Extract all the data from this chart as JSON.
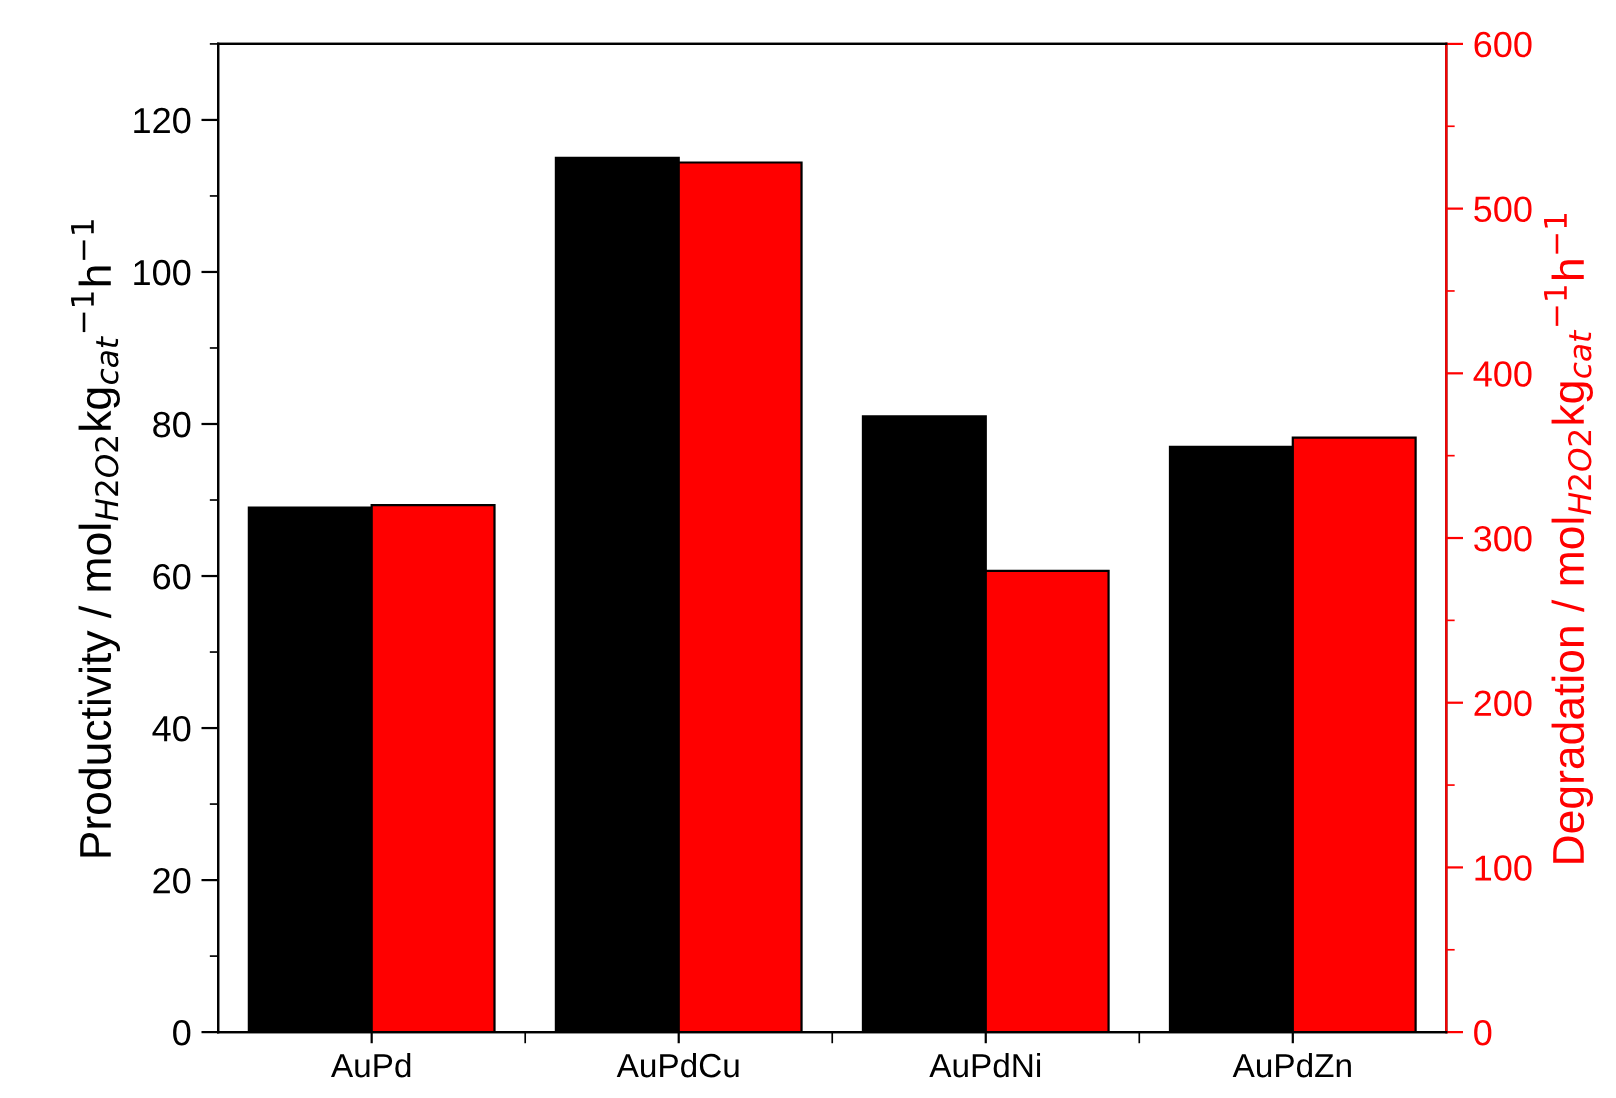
{
  "chart_data": {
    "type": "bar",
    "categories": [
      "AuPd",
      "AuPdCu",
      "AuPdNi",
      "AuPdZn"
    ],
    "ylabel": "Productivity / mol$_{H2O2}$kg$_{cat}$$^{−1}$h$^{−1}$",
    "y2label": "Degradation / mol$_{H2O2}$kg$_{cat}$$^{−1}$h$^{−1}$",
    "series": [
      {
        "color": "#000000",
        "values": [
          69,
          115,
          81,
          77
        ]
      },
      {
        "color": "#ff0000",
        "axis": "y2",
        "values": [
          320,
          528,
          280,
          361
        ]
      }
    ],
    "ylim": [
      0,
      130
    ],
    "yticks": [
      0,
      {
        "value": 10,
        "label": null
      },
      20,
      {
        "value": 30,
        "label": null
      },
      40,
      {
        "value": 50,
        "label": null
      },
      60,
      {
        "value": 70,
        "label": null
      },
      80,
      {
        "value": 90,
        "label": null
      },
      100,
      {
        "value": 110,
        "label": null
      },
      120,
      {
        "value": 130,
        "label": null
      }
    ],
    "y2lim": [
      0,
      600
    ],
    "y2ticks": [
      0,
      {
        "value": 50,
        "label": null
      },
      100,
      {
        "value": 150,
        "label": null
      },
      200,
      {
        "value": 250,
        "label": null
      },
      300,
      {
        "value": 350,
        "label": null
      },
      400,
      {
        "value": 450,
        "label": null
      },
      500,
      {
        "value": 550,
        "label": null
      },
      600
    ],
    "grid": false,
    "legend": false
  }
}
